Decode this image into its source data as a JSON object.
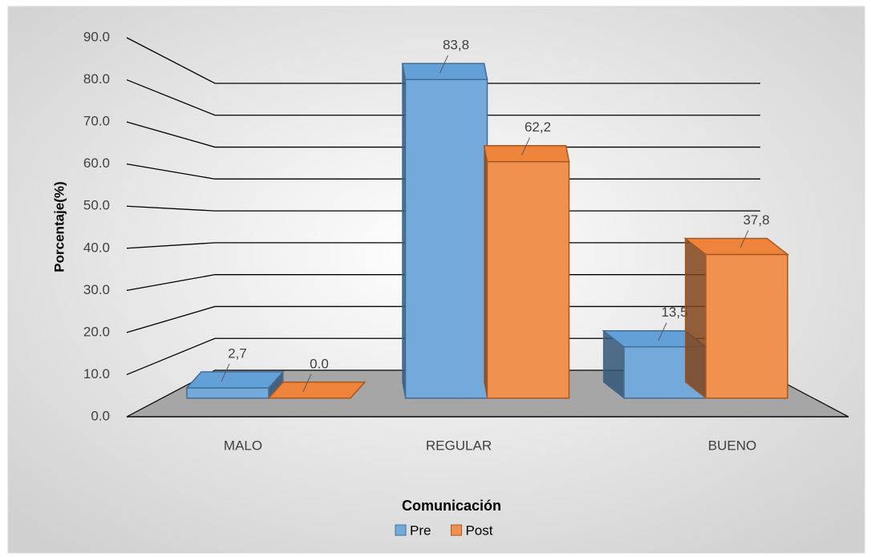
{
  "chart_data": {
    "type": "bar3d",
    "y_label": "Porcentaje(%)",
    "legend_title": "Comunicación",
    "categories": [
      "MALO",
      "REGULAR",
      "BUENO"
    ],
    "series": [
      {
        "name": "Pre",
        "color": "#5b9bd5",
        "values": [
          2.7,
          83.8,
          13.5
        ],
        "value_labels": [
          "2,7",
          "83,8",
          "13,5"
        ]
      },
      {
        "name": "Post",
        "color": "#ed7d31",
        "values": [
          0.0,
          62.2,
          37.8
        ],
        "value_labels": [
          "0.0",
          "62,2",
          "37,8"
        ]
      }
    ],
    "ylim": [
      0,
      90
    ],
    "yticks": [
      {
        "value": 0,
        "label": "0.0"
      },
      {
        "value": 10,
        "label": "10.0"
      },
      {
        "value": 20,
        "label": "20.0"
      },
      {
        "value": 30,
        "label": "30.0"
      },
      {
        "value": 40,
        "label": "40.0"
      },
      {
        "value": 50,
        "label": "50.0"
      },
      {
        "value": 60,
        "label": "60.0"
      },
      {
        "value": 70,
        "label": "70.0"
      },
      {
        "value": 80,
        "label": "80.0"
      },
      {
        "value": 90,
        "label": "90.0"
      }
    ],
    "grid": true,
    "legend": "bottom"
  }
}
